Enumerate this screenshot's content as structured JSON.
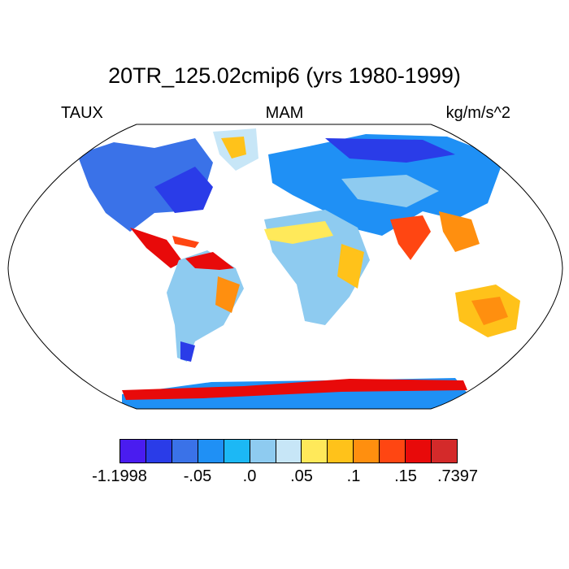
{
  "title": "20TR_125.02cmip6 (yrs 1980-1999)",
  "left_label": "TAUX",
  "center_label": "MAM",
  "right_label": "kg/m/s^2",
  "colorbar": {
    "colors": [
      "#4a1cf0",
      "#2a3ce8",
      "#3a72e8",
      "#1f90f5",
      "#1cb8f5",
      "#8ecbf0",
      "#c7e6f7",
      "#ffe95a",
      "#ffc21a",
      "#ff8f0f",
      "#ff4612",
      "#e80a0a",
      "#d42a2a"
    ],
    "tick_labels": [
      "-1.1998",
      "-.05",
      ".0",
      ".05",
      ".1",
      ".15",
      ".7397"
    ]
  }
}
